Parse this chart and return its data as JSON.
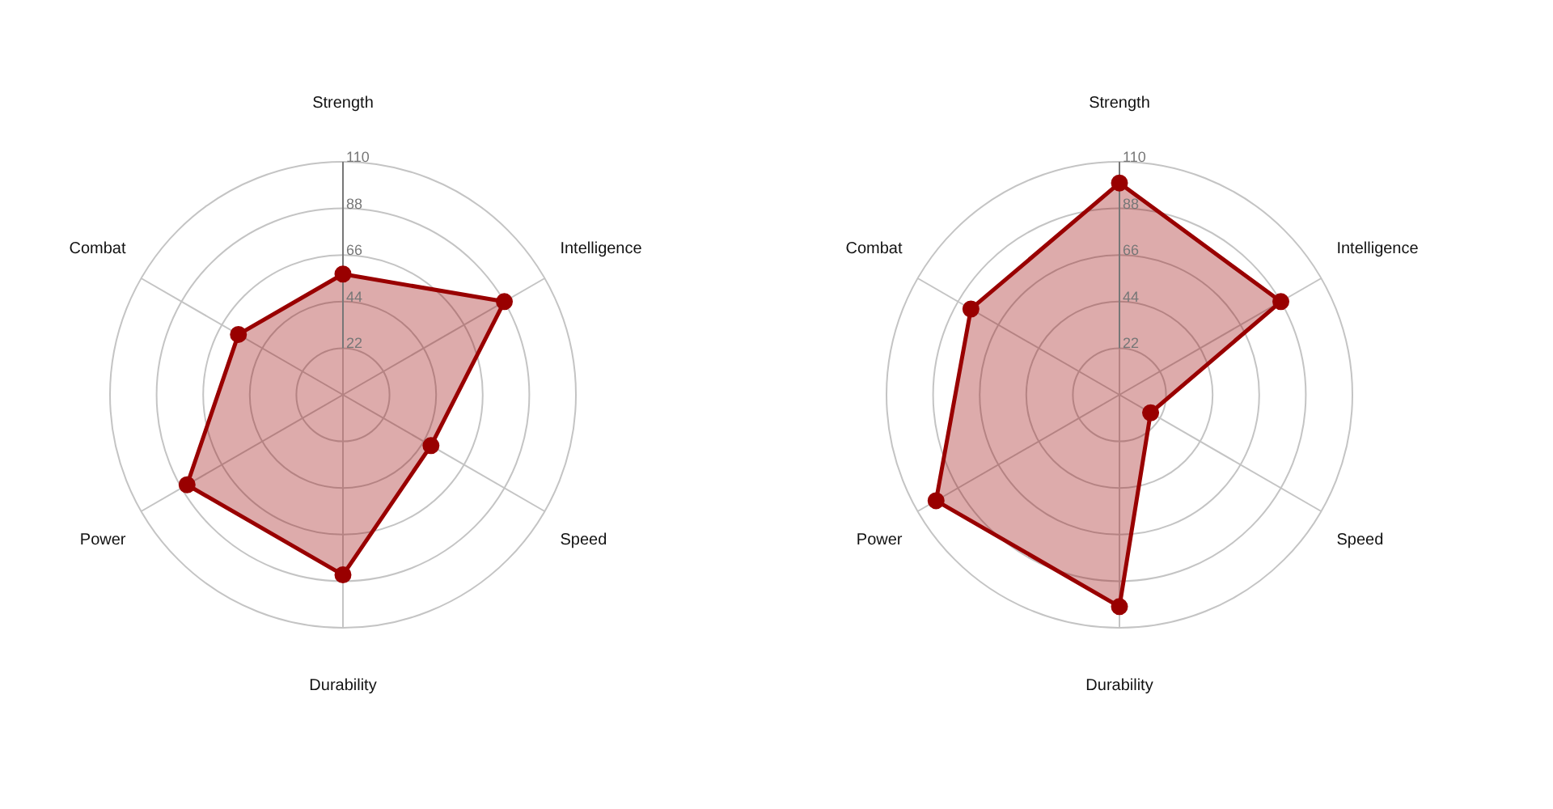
{
  "chart_data": [
    {
      "type": "radar",
      "categories": [
        "Strength",
        "Intelligence",
        "Speed",
        "Durability",
        "Power",
        "Combat"
      ],
      "series": [
        {
          "color": "#990000",
          "values": [
            57,
            88,
            48,
            85,
            85,
            57
          ]
        }
      ],
      "ylim": [
        0,
        110
      ],
      "yticks": [
        22,
        44,
        66,
        88,
        110
      ],
      "grid": true,
      "legend": false,
      "marker": "circle",
      "line_style": "solid"
    },
    {
      "type": "radar",
      "categories": [
        "Strength",
        "Intelligence",
        "Speed",
        "Durability",
        "Power",
        "Combat"
      ],
      "series": [
        {
          "color": "#990000",
          "values": [
            100,
            88,
            17,
            100,
            100,
            81
          ]
        }
      ],
      "ylim": [
        0,
        110
      ],
      "yticks": [
        22,
        44,
        66,
        88,
        110
      ],
      "grid": true,
      "legend": false,
      "marker": "circle",
      "line_style": "solid"
    }
  ]
}
